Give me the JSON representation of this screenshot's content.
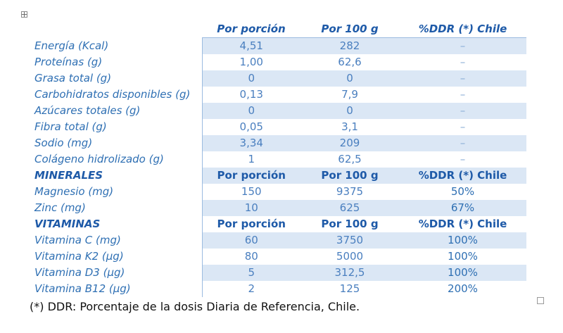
{
  "table": {
    "header": [
      "Por porción",
      "Por 100 g",
      "%DDR (*) Chile"
    ],
    "rows": [
      {
        "label": "Energía (Kcal)",
        "a": "4,51",
        "b": "282",
        "c": "–"
      },
      {
        "label": "Proteínas (g)",
        "a": "1,00",
        "b": "62,6",
        "c": "–"
      },
      {
        "label": "Grasa total (g)",
        "a": "0",
        "b": "0",
        "c": "–"
      },
      {
        "label": "Carbohidratos disponibles (g)",
        "a": "0,13",
        "b": "7,9",
        "c": "–"
      },
      {
        "label": "Azúcares totales (g)",
        "a": "0",
        "b": "0",
        "c": "–"
      },
      {
        "label": "Fibra total (g)",
        "a": "0,05",
        "b": "3,1",
        "c": "–"
      },
      {
        "label": "Sodio (mg)",
        "a": "3,34",
        "b": "209",
        "c": "–"
      },
      {
        "label": "Colágeno hidrolizado (g)",
        "a": "1",
        "b": "62,5",
        "c": "–"
      }
    ],
    "minerals_header": {
      "label": "MINERALES",
      "a": "Por porción",
      "b": "Por 100 g",
      "c": "%DDR (*) Chile"
    },
    "minerals": [
      {
        "label": "Magnesio (mg)",
        "a": "150",
        "b": "9375",
        "c": "50%"
      },
      {
        "label": "Zinc (mg)",
        "a": "10",
        "b": "625",
        "c": "67%"
      }
    ],
    "vitamins_header": {
      "label": "VITAMINAS",
      "a": "Por porción",
      "b": "Por 100 g",
      "c": "%DDR (*) Chile"
    },
    "vitamins": [
      {
        "label": "Vitamina C (mg)",
        "a": "60",
        "b": "3750",
        "c": "100%"
      },
      {
        "label": "Vitamina K2 (µg)",
        "a": "80",
        "b": "5000",
        "c": "100%"
      },
      {
        "label": "Vitamina D3 (µg)",
        "a": "5",
        "b": "312,5",
        "c": "100%"
      },
      {
        "label": "Vitamina B12 (µg)",
        "a": "2",
        "b": "125",
        "c": "200%"
      }
    ]
  },
  "footnote": "(*) DDR: Porcentaje de la dosis Diaria de Referencia, Chile."
}
